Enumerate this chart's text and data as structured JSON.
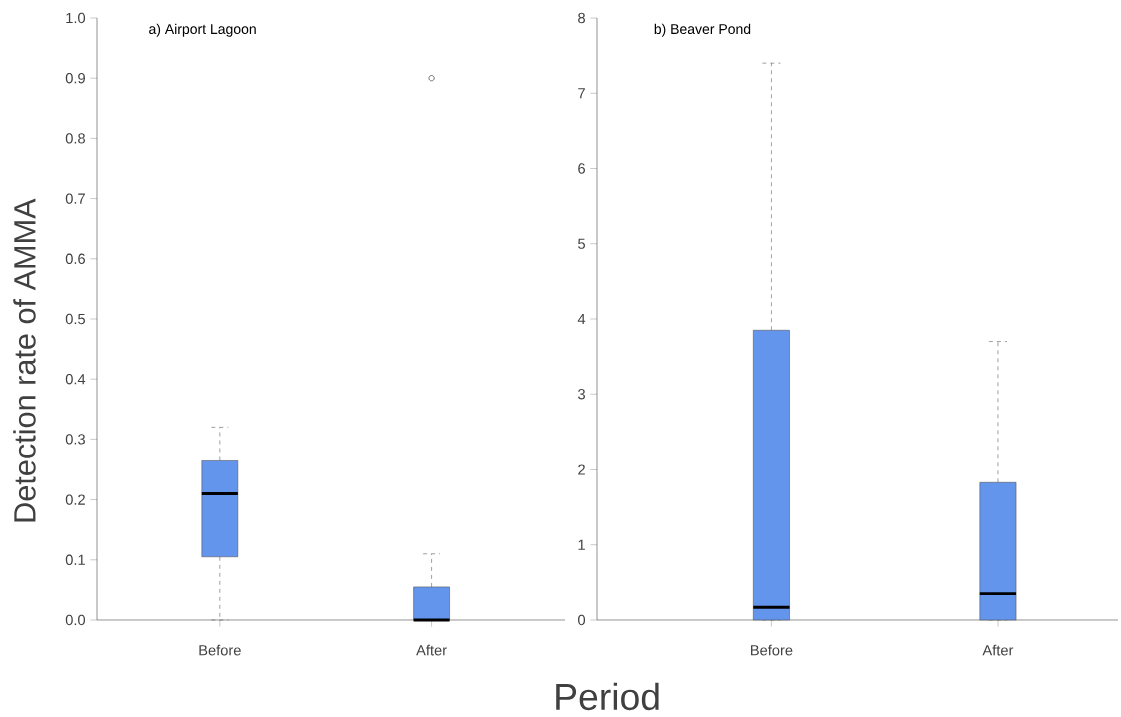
{
  "chart_data": [
    {
      "type": "box",
      "title": "a) Airport Lagoon",
      "ylabel": "Detection rate of AMMA",
      "xlabel": "Period",
      "categories": [
        "Before",
        "After"
      ],
      "color": "#6495ed",
      "boxes": [
        {
          "low": 0,
          "q1": 0.105,
          "median": 0.21,
          "q3": 0.265,
          "high": 0.32
        },
        {
          "low": 0,
          "q1": 0,
          "median": 0,
          "q3": 0.055,
          "high": 0.11,
          "outliers": [
            0.9
          ]
        }
      ],
      "ylim": [
        0,
        1
      ],
      "yticks": [
        {
          "value": 0,
          "label": "0.0"
        },
        {
          "value": 0.1,
          "label": "0.1"
        },
        {
          "value": 0.2,
          "label": "0.2"
        },
        {
          "value": 0.3,
          "label": "0.3"
        },
        {
          "value": 0.4,
          "label": "0.4"
        },
        {
          "value": 0.5,
          "label": "0.5"
        },
        {
          "value": 0.6,
          "label": "0.6"
        },
        {
          "value": 0.7,
          "label": "0.7"
        },
        {
          "value": 0.8,
          "label": "0.8"
        },
        {
          "value": 0.9,
          "label": "0.9"
        },
        {
          "value": 1,
          "label": "1.0"
        }
      ]
    },
    {
      "type": "box",
      "title": "b) Beaver Pond",
      "categories": [
        "Before",
        "After"
      ],
      "color": "#6495ed",
      "boxes": [
        {
          "low": 0,
          "q1": 0,
          "median": 0.17,
          "q3": 3.85,
          "high": 7.4
        },
        {
          "low": 0,
          "q1": 0,
          "median": 0.35,
          "q3": 1.83,
          "high": 3.7
        }
      ],
      "ylim": [
        0,
        8
      ],
      "yticks": [
        0,
        1,
        2,
        3,
        4,
        5,
        6,
        7,
        8
      ]
    }
  ]
}
